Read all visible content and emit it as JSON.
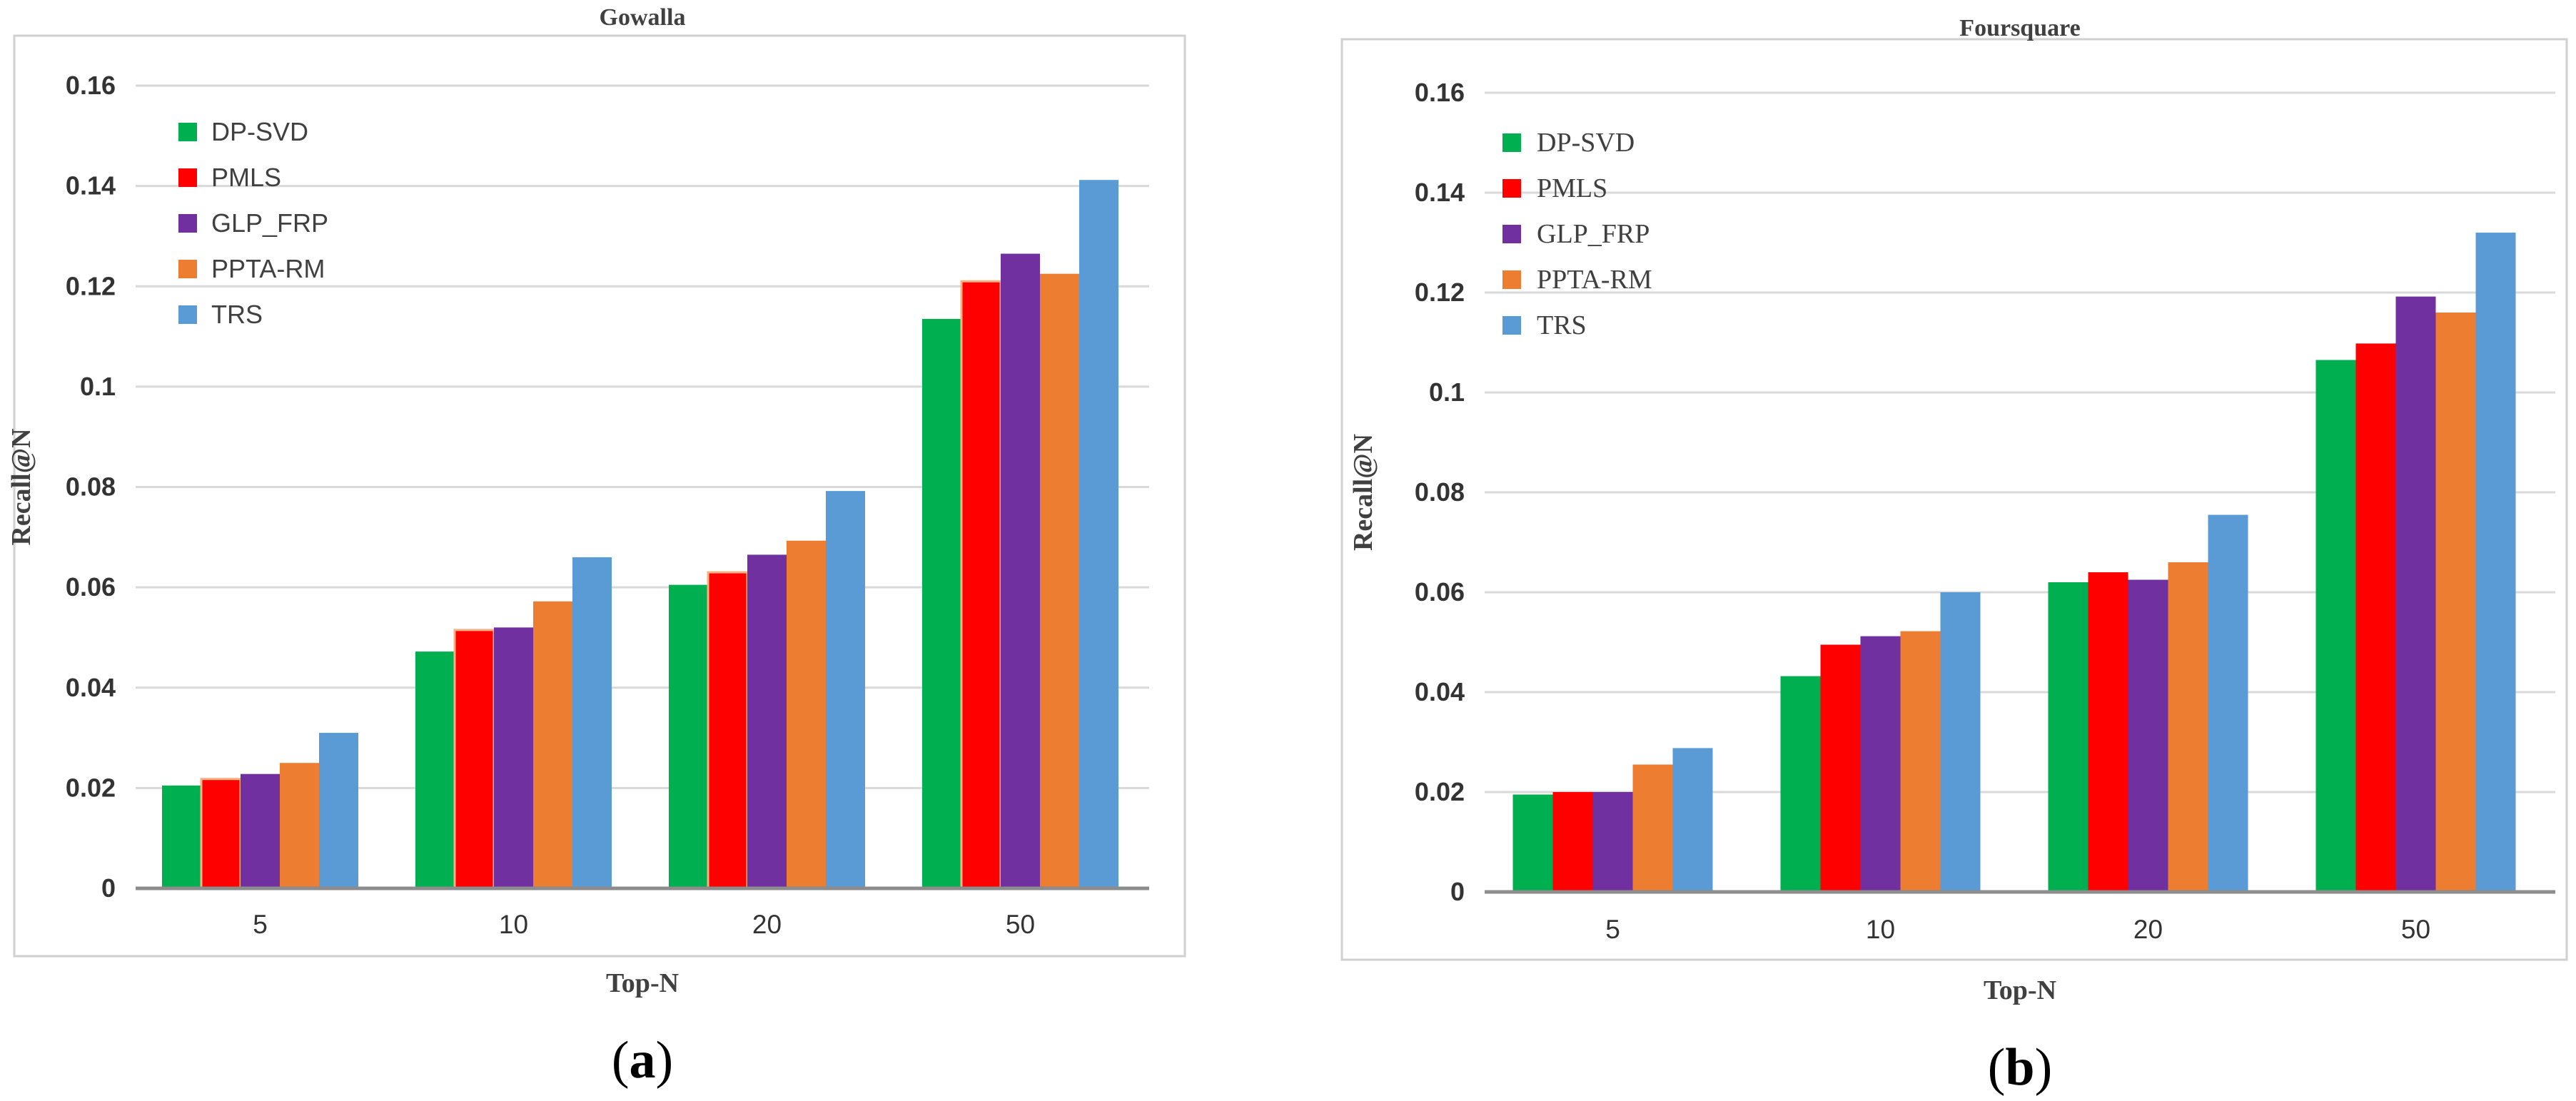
{
  "chart_data": [
    {
      "type": "bar",
      "panel_label": "a",
      "title": "Gowalla",
      "xlabel": "Top-N",
      "ylabel": "Recall@N",
      "ylim": [
        0,
        0.16
      ],
      "yticks": [
        "0",
        "0.02",
        "0.04",
        "0.06",
        "0.08",
        "0.1",
        "0.12",
        "0.14",
        "0.16"
      ],
      "grid": true,
      "legend_position": "top-left",
      "categories": [
        "5",
        "10",
        "20",
        "50"
      ],
      "series": [
        {
          "name": "DP-SVD",
          "color": "#00b050",
          "values": [
            0.0205,
            0.0472,
            0.0605,
            0.1135
          ]
        },
        {
          "name": "PMLS",
          "color": "#ff0000",
          "values": [
            0.0218,
            0.0515,
            0.063,
            0.121
          ]
        },
        {
          "name": "GLP_FRP",
          "color": "#7030a0",
          "values": [
            0.0228,
            0.052,
            0.0665,
            0.1265
          ]
        },
        {
          "name": "PPTA-RM",
          "color": "#ed7d31",
          "values": [
            0.025,
            0.0572,
            0.0693,
            0.1225
          ]
        },
        {
          "name": "TRS",
          "color": "#5b9bd5",
          "values": [
            0.031,
            0.066,
            0.0792,
            0.1412
          ]
        }
      ]
    },
    {
      "type": "bar",
      "panel_label": "b",
      "title": "Foursquare",
      "xlabel": "Top-N",
      "ylabel": "Recall@N",
      "ylim": [
        0,
        0.16
      ],
      "yticks": [
        "0",
        "0.02",
        "0.04",
        "0.06",
        "0.08",
        "0.1",
        "0.12",
        "0.14",
        "0.16"
      ],
      "grid": true,
      "legend_position": "top-left",
      "categories": [
        "5",
        "10",
        "20",
        "50"
      ],
      "series": [
        {
          "name": "DP-SVD",
          "color": "#00b050",
          "values": [
            0.0195,
            0.0432,
            0.062,
            0.1065
          ]
        },
        {
          "name": "PMLS",
          "color": "#ff0000",
          "values": [
            0.02,
            0.0495,
            0.064,
            0.1098
          ]
        },
        {
          "name": "GLP_FRP",
          "color": "#7030a0",
          "values": [
            0.02,
            0.0512,
            0.0625,
            0.1192
          ]
        },
        {
          "name": "PPTA-RM",
          "color": "#ed7d31",
          "values": [
            0.0255,
            0.0522,
            0.066,
            0.116
          ]
        },
        {
          "name": "TRS",
          "color": "#5b9bd5",
          "values": [
            0.0288,
            0.06,
            0.0755,
            0.132
          ]
        }
      ]
    }
  ]
}
